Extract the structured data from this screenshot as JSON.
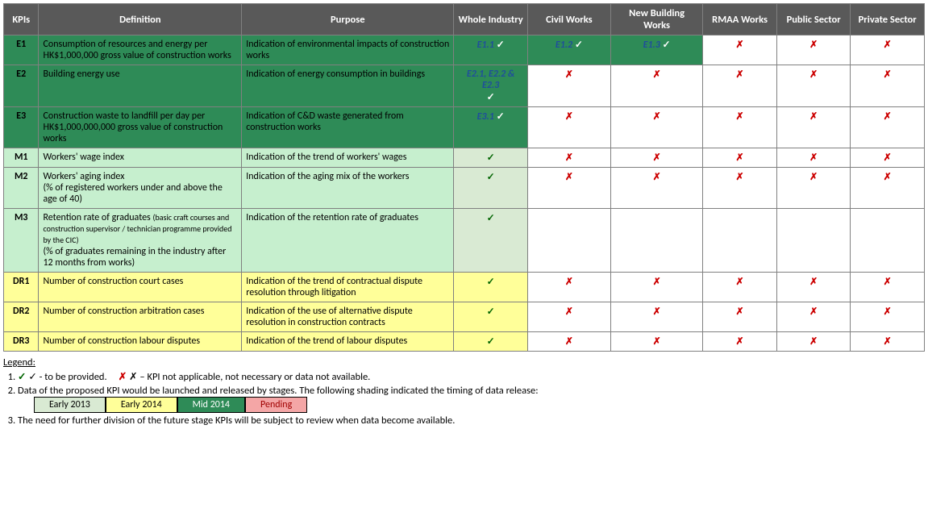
{
  "headers": {
    "kpi": "KPIs",
    "def": "Definition",
    "purp": "Purpose",
    "wi": "Whole Industry",
    "cw": "Civil Works",
    "nbw": "New Building Works",
    "rmaa": "RMAA Works",
    "pub": "Public Sector",
    "priv": "Private Sector"
  },
  "rows": [
    {
      "id": "E1",
      "bg": "bg-mid2014",
      "def": "Consumption of resources and energy per HK$1,000,000 gross value of construction works",
      "purp": "Indication of environmental impacts of construction works",
      "wi": {
        "code": "E1.1",
        "tick": true,
        "bg": "bg-wi-green",
        "tickwhite": true
      },
      "cw": {
        "code": "E1.2",
        "tick": true,
        "bg": "bg-wi-green",
        "tickwhite": true
      },
      "nbw": {
        "code": "E1.3",
        "tick": true,
        "bg": "bg-wi-green",
        "tickwhite": true
      },
      "rmaa": {
        "cross": true
      },
      "pub": {
        "cross": true
      },
      "priv": {
        "cross": true
      }
    },
    {
      "id": "E2",
      "bg": "bg-mid2014",
      "def": "Building energy use",
      "purp": "Indication of energy consumption in buildings",
      "wi": {
        "code": "E2.1, E2.2 & E2.3",
        "tick": true,
        "bg": "bg-wi-green",
        "tickwhite": true,
        "stack": true
      },
      "cw": {
        "cross": true
      },
      "nbw": {
        "cross": true
      },
      "rmaa": {
        "cross": true
      },
      "pub": {
        "cross": true
      },
      "priv": {
        "cross": true
      }
    },
    {
      "id": "E3",
      "bg": "bg-mid2014",
      "def": "Construction waste to landfill per day per HK$1,000,000,000 gross value of construction works",
      "purp": "Indication of C&D waste generated from construction works",
      "wi": {
        "code": "E3.1",
        "tick": true,
        "bg": "bg-wi-green",
        "tickwhite": true
      },
      "cw": {
        "cross": true
      },
      "nbw": {
        "cross": true
      },
      "rmaa": {
        "cross": true
      },
      "pub": {
        "cross": true
      },
      "priv": {
        "cross": true
      }
    },
    {
      "id": "M1",
      "bg": "bg-early2014",
      "def": "Workers' wage index",
      "purp": "Indication of the trend of workers' wages",
      "wi": {
        "tick": true,
        "bg": "bg-wi-light"
      },
      "cw": {
        "cross": true
      },
      "nbw": {
        "cross": true
      },
      "rmaa": {
        "cross": true
      },
      "pub": {
        "cross": true
      },
      "priv": {
        "cross": true
      }
    },
    {
      "id": "M2",
      "bg": "bg-early2014",
      "def": "Workers' aging index\n(% of registered workers under and above the age of 40)",
      "purp": "Indication of the aging mix of the workers",
      "wi": {
        "tick": true,
        "bg": "bg-wi-light"
      },
      "cw": {
        "cross": true
      },
      "nbw": {
        "cross": true
      },
      "rmaa": {
        "cross": true
      },
      "pub": {
        "cross": true
      },
      "priv": {
        "cross": true
      }
    },
    {
      "id": "M3",
      "bg": "bg-early2014",
      "def": "Retention rate of graduates |(basic craft courses and construction supervisor / technician programme provided by the CIC)|\n(% of graduates remaining in the industry after 12 months from works)",
      "purp": "Indication of the retention rate of graduates",
      "wi": {
        "tick": true,
        "bg": "bg-wi-light"
      },
      "cw": {
        "blank": true
      },
      "nbw": {
        "blank": true
      },
      "rmaa": {
        "blank": true
      },
      "pub": {
        "blank": true
      },
      "priv": {
        "blank": true
      }
    },
    {
      "id": "DR1",
      "bg": "bg-pending",
      "def": "Number of construction court cases",
      "purp": "Indication of the trend of contractual dispute resolution through litigation",
      "wi": {
        "tick": true,
        "bg": "bg-wi-yel"
      },
      "cw": {
        "cross": true
      },
      "nbw": {
        "cross": true
      },
      "rmaa": {
        "cross": true
      },
      "pub": {
        "cross": true
      },
      "priv": {
        "cross": true
      }
    },
    {
      "id": "DR2",
      "bg": "bg-pending",
      "def": "Number of construction arbitration cases",
      "purp": "Indication of the use of alternative dispute resolution in construction contracts",
      "wi": {
        "tick": true,
        "bg": "bg-wi-yel"
      },
      "cw": {
        "cross": true
      },
      "nbw": {
        "cross": true
      },
      "rmaa": {
        "cross": true
      },
      "pub": {
        "cross": true
      },
      "priv": {
        "cross": true
      }
    },
    {
      "id": "DR3",
      "bg": "bg-pending",
      "def": "Number of construction labour disputes",
      "purp": "Indication of the trend of labour disputes",
      "wi": {
        "tick": true,
        "bg": "bg-wi-yel"
      },
      "cw": {
        "cross": true
      },
      "nbw": {
        "cross": true
      },
      "rmaa": {
        "cross": true
      },
      "pub": {
        "cross": true
      },
      "priv": {
        "cross": true
      }
    }
  ],
  "legend": {
    "title": "Legend:",
    "line1_a": "✓ - to be provided.",
    "line1_b": "✗ – KPI not applicable, not necessary or data not available.",
    "line2": "Data of the proposed KPI would be launched and released by stages. The following shading indicated the timing of data release:",
    "swatches": {
      "e13": "Early 2013",
      "e14": "Early 2014",
      "m14": "Mid 2014",
      "pend": "Pending"
    },
    "line3": "The need for further division of the future stage KPIs will be subject to review when data become available."
  },
  "marks": {
    "tick": "✓",
    "cross": "✗"
  }
}
